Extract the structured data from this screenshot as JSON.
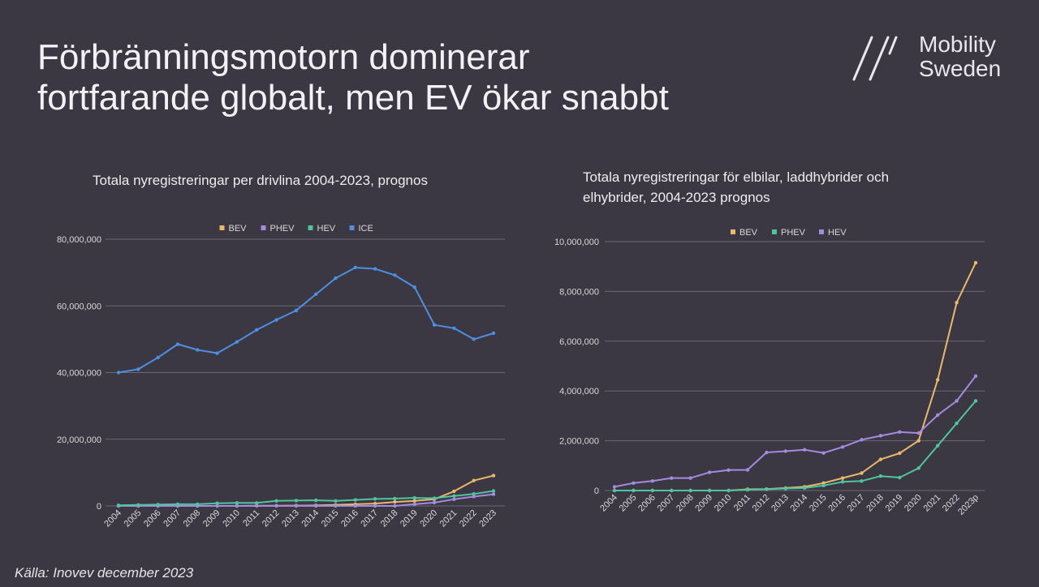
{
  "slide": {
    "title_line1": "Förbränningsmotorn dominerar",
    "title_line2": "fortfarande globalt, men EV ökar snabbt",
    "source": "Källa: Inovev december 2023"
  },
  "logo": {
    "line1": "Mobility",
    "line2": "Sweden",
    "icon": "double-slash-logo-icon"
  },
  "colors": {
    "background": "#3b3743",
    "BEV": "#e8b96c",
    "PHEV": "#a48be0",
    "HEV": "#4fc59f",
    "ICE": "#4e8fe0",
    "grid": "#6b6875",
    "tick": "#d9d9d9"
  },
  "chart_data": [
    {
      "type": "line",
      "title": "Totala nyregistreringar per drivlina 2004-2023, prognos",
      "xlabel": "",
      "ylabel": "",
      "ylim": [
        0,
        80000000
      ],
      "y_ticks": [
        "0",
        "20,000,000",
        "40,000,000",
        "60,000,000",
        "80,000,000"
      ],
      "legend_position": "top-center",
      "categories": [
        "2004",
        "2005",
        "2006",
        "2007",
        "2008",
        "2009",
        "2010",
        "2011",
        "2012",
        "2013",
        "2014",
        "2015",
        "2016",
        "2017",
        "2018",
        "2019",
        "2020",
        "2021",
        "2022",
        "2023"
      ],
      "series": [
        {
          "name": "BEV",
          "color": "#e8b96c",
          "values": [
            0,
            0,
            0,
            0,
            0,
            0,
            0,
            50000,
            60000,
            100000,
            150000,
            300000,
            500000,
            700000,
            1200000,
            1500000,
            2000000,
            4400000,
            7600000,
            9100000
          ]
        },
        {
          "name": "PHEV",
          "color": "#a48be0",
          "values": [
            0,
            0,
            0,
            0,
            0,
            0,
            0,
            0,
            0,
            0,
            0,
            0,
            0,
            0,
            0,
            500000,
            1000000,
            2000000,
            2800000,
            3500000
          ]
        },
        {
          "name": "HEV",
          "color": "#4fc59f",
          "values": [
            200000,
            300000,
            400000,
            500000,
            500000,
            800000,
            900000,
            900000,
            1500000,
            1600000,
            1700000,
            1500000,
            1800000,
            2100000,
            2200000,
            2400000,
            2300000,
            3000000,
            3600000,
            4500000
          ]
        },
        {
          "name": "ICE",
          "color": "#4e8fe0",
          "values": [
            40000000,
            41000000,
            44500000,
            48500000,
            46800000,
            45800000,
            49200000,
            52800000,
            55800000,
            58600000,
            63500000,
            68300000,
            71500000,
            71100000,
            69200000,
            65600000,
            54300000,
            53300000,
            50000000,
            51800000
          ]
        }
      ]
    },
    {
      "type": "line",
      "title": "Totala nyregistreringar för elbilar, laddhybrider och elhybrider, 2004-2023 prognos",
      "title_line1": "Totala nyregistreringar för elbilar, laddhybrider och",
      "title_line2": "elhybrider, 2004-2023 prognos",
      "xlabel": "",
      "ylabel": "",
      "ylim": [
        0,
        10000000
      ],
      "y_ticks": [
        "0",
        "2,000,000",
        "4,000,000",
        "6,000,000",
        "8,000,000",
        "10,000,000"
      ],
      "legend_position": "top-center",
      "categories": [
        "2004",
        "2005",
        "2006",
        "2007",
        "2008",
        "2009",
        "2010",
        "2011",
        "2012",
        "2013",
        "2014",
        "2015",
        "2016",
        "2017",
        "2018",
        "2019",
        "2020",
        "2021",
        "2022",
        "2023p"
      ],
      "series": [
        {
          "name": "BEV",
          "color": "#e8b96c",
          "values": [
            0,
            0,
            0,
            0,
            0,
            0,
            0,
            50000,
            60000,
            100000,
            150000,
            300000,
            500000,
            700000,
            1250000,
            1500000,
            2000000,
            4450000,
            7550000,
            9150000
          ]
        },
        {
          "name": "PHEV",
          "color": "#4fc59f",
          "values": [
            0,
            0,
            0,
            0,
            0,
            0,
            0,
            30000,
            50000,
            80000,
            100000,
            200000,
            350000,
            380000,
            580000,
            520000,
            900000,
            1800000,
            2700000,
            3600000
          ]
        },
        {
          "name": "HEV",
          "color": "#a48be0",
          "values": [
            150000,
            300000,
            380000,
            500000,
            500000,
            730000,
            820000,
            830000,
            1530000,
            1580000,
            1640000,
            1510000,
            1750000,
            2040000,
            2200000,
            2350000,
            2310000,
            3030000,
            3600000,
            4600000
          ]
        }
      ]
    }
  ]
}
